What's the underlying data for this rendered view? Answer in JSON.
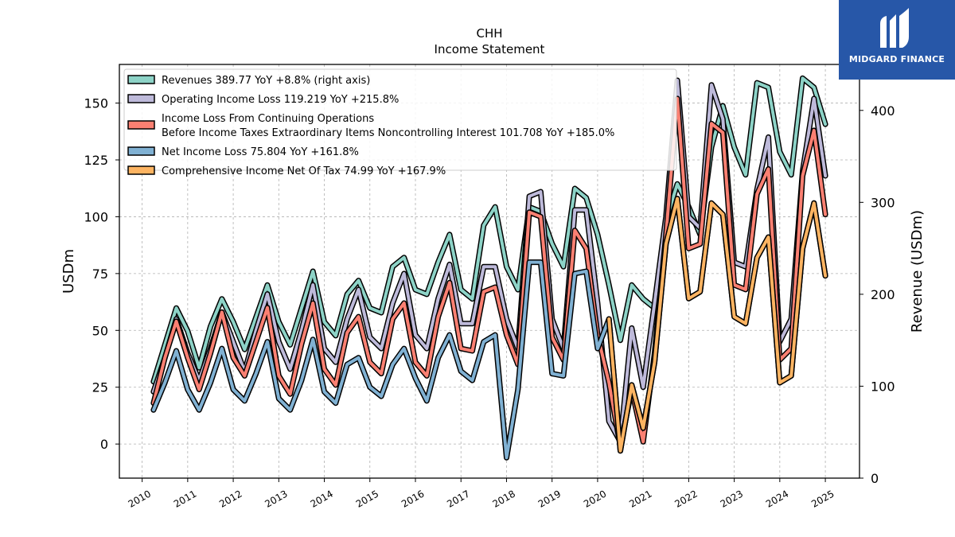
{
  "logo": {
    "text": "MIDGARD FINANCE"
  },
  "chart_data": {
    "type": "line",
    "title": "CHH",
    "subtitle": "Income Statement",
    "ylabel": "USDm",
    "ylabel_right": "Revenue (USDm)",
    "ylim": [
      -15,
      167
    ],
    "ylim_right": [
      0,
      450
    ],
    "yticks": [
      0,
      25,
      50,
      75,
      100,
      125,
      150
    ],
    "yticks_right": [
      0,
      100,
      200,
      300,
      400
    ],
    "xlim": [
      2009.5,
      2025.75
    ],
    "xticks": [
      2010,
      2011,
      2012,
      2013,
      2014,
      2015,
      2016,
      2017,
      2018,
      2019,
      2020,
      2021,
      2022,
      2023,
      2024,
      2025
    ],
    "grid": true,
    "legend_position": "top-left",
    "x": [
      2010.25,
      2010.5,
      2010.75,
      2011.0,
      2011.25,
      2011.5,
      2011.75,
      2012.0,
      2012.25,
      2012.5,
      2012.75,
      2013.0,
      2013.25,
      2013.5,
      2013.75,
      2014.0,
      2014.25,
      2014.5,
      2014.75,
      2015.0,
      2015.25,
      2015.5,
      2015.75,
      2016.0,
      2016.25,
      2016.5,
      2016.75,
      2017.0,
      2017.25,
      2017.5,
      2017.75,
      2018.0,
      2018.25,
      2018.5,
      2018.75,
      2019.0,
      2019.25,
      2019.5,
      2019.75,
      2020.0,
      2020.25,
      2020.5,
      2020.75,
      2021.0,
      2021.25,
      2021.5,
      2021.75,
      2022.0,
      2022.25,
      2022.5,
      2022.75,
      2023.0,
      2023.25,
      2023.5,
      2023.75,
      2024.0,
      2024.25,
      2024.5,
      2024.75,
      2025.0
    ],
    "series": [
      {
        "name": "Revenues",
        "label": "Revenues  389.77 YoY +8.8% (right axis)",
        "axis": "right",
        "color": "#8dd3c7",
        "values": [
          105,
          145,
          185,
          160,
          120,
          165,
          195,
          170,
          140,
          175,
          210,
          170,
          145,
          185,
          225,
          170,
          155,
          200,
          215,
          185,
          180,
          230,
          240,
          205,
          200,
          235,
          265,
          205,
          195,
          275,
          295,
          230,
          205,
          295,
          290,
          255,
          230,
          315,
          305,
          265,
          210,
          150,
          210,
          195,
          185,
          280,
          320,
          295,
          265,
          360,
          405,
          360,
          330,
          430,
          425,
          355,
          330,
          435,
          425,
          385
        ]
      },
      {
        "name": "Operating Income Loss",
        "label": "Operating Income Loss  119.219 YoY +215.8%",
        "axis": "left",
        "color": "#bebada",
        "values": [
          23,
          38,
          55,
          40,
          28,
          42,
          58,
          45,
          32,
          50,
          66,
          45,
          33,
          50,
          70,
          42,
          36,
          55,
          68,
          47,
          42,
          62,
          75,
          48,
          42,
          64,
          79,
          53,
          53,
          78,
          78,
          55,
          42,
          109,
          111,
          55,
          42,
          103,
          103,
          62,
          10,
          1,
          51,
          25,
          62,
          100,
          160,
          100,
          95,
          158,
          143,
          80,
          78,
          112,
          135,
          45,
          55,
          120,
          152,
          118
        ]
      },
      {
        "name": "Income Loss From Continuing Operations Before Income Taxes Extraordinary Items Noncontrolling Interest",
        "label": [
          "Income Loss From Continuing Operations",
          "Before Income Taxes Extraordinary Items Noncontrolling Interest  101.708 YoY +185.0%"
        ],
        "axis": "left",
        "color": "#fb8072",
        "values": [
          18,
          38,
          54,
          38,
          24,
          40,
          58,
          38,
          30,
          45,
          60,
          30,
          22,
          44,
          62,
          33,
          26,
          49,
          56,
          36,
          31,
          55,
          62,
          36,
          30,
          56,
          71,
          42,
          41,
          67,
          69,
          48,
          35,
          102,
          100,
          47,
          37,
          94,
          86,
          48,
          27,
          -1,
          24,
          1,
          40,
          92,
          152,
          86,
          88,
          141,
          137,
          70,
          68,
          110,
          121,
          37,
          42,
          118,
          138,
          101
        ]
      },
      {
        "name": "Net Income Loss",
        "label": "Net Income Loss  75.804 YoY +161.8%",
        "axis": "left",
        "color": "#80b1d3",
        "values": [
          15,
          27,
          41,
          24,
          15,
          27,
          42,
          24,
          19,
          31,
          45,
          20,
          15,
          28,
          46,
          23,
          18,
          35,
          38,
          25,
          21,
          35,
          42,
          29,
          19,
          38,
          48,
          32,
          28,
          45,
          48,
          -6,
          24,
          80,
          80,
          31,
          30,
          75,
          76,
          42,
          55,
          -3,
          26,
          7,
          36,
          88,
          108,
          64,
          67,
          106,
          101,
          56,
          53,
          82,
          91,
          27,
          30,
          86,
          106,
          74
        ]
      },
      {
        "name": "Comprehensive Income Net Of Tax",
        "label": "Comprehensive Income Net Of Tax  74.99 YoY +167.9%",
        "axis": "left",
        "color": "#fdb462",
        "values": [
          null,
          null,
          null,
          null,
          null,
          null,
          null,
          null,
          null,
          null,
          null,
          null,
          null,
          null,
          null,
          null,
          null,
          null,
          null,
          null,
          null,
          null,
          null,
          null,
          null,
          null,
          null,
          null,
          null,
          null,
          null,
          null,
          null,
          null,
          null,
          null,
          null,
          null,
          null,
          null,
          55,
          -3,
          26,
          7,
          36,
          88,
          108,
          64,
          67,
          106,
          101,
          56,
          53,
          82,
          91,
          27,
          30,
          86,
          106,
          74
        ]
      }
    ]
  }
}
